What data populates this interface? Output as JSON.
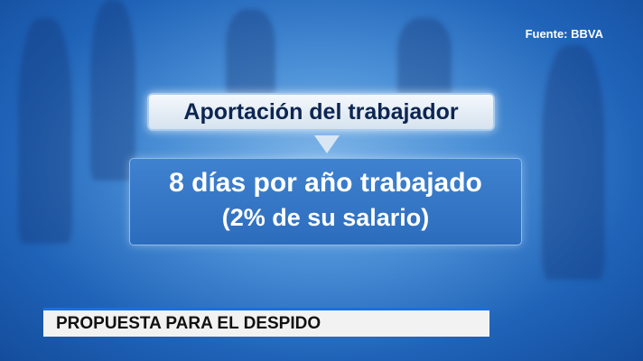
{
  "source": "Fuente: BBVA",
  "header_box": "Aportación del trabajador",
  "main_box": {
    "line1": "8 días por año trabajado",
    "line2": "(2% de su salario)"
  },
  "lower_third": "PROPUESTA PARA EL DESPIDO",
  "colors": {
    "background": "#2c6cbd",
    "lower_third_accent": "#1a6fe0",
    "header_text": "#0d2550"
  }
}
